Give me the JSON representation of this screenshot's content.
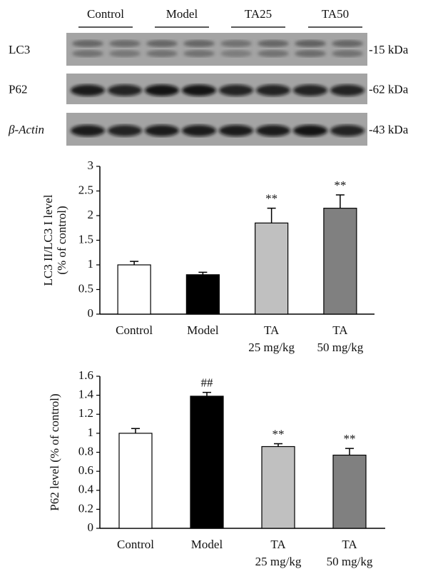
{
  "blot": {
    "groups": [
      "Control",
      "Model",
      "TA25",
      "TA50"
    ],
    "rows": [
      {
        "label": "LC3",
        "size": "-15 kDa"
      },
      {
        "label": "P62",
        "size": "-62 kDa"
      },
      {
        "label": "β-Actin",
        "size": "-43 kDa"
      }
    ]
  },
  "chart_data": [
    {
      "type": "bar",
      "y_label": [
        "LC3 II/LC3 I level",
        "(% of control)"
      ],
      "categories": [
        [
          "Control"
        ],
        [
          "Model"
        ],
        [
          "TA",
          "25 mg/kg"
        ],
        [
          "TA",
          "50 mg/kg"
        ]
      ],
      "values": [
        1.0,
        0.8,
        1.85,
        2.15
      ],
      "errors": [
        0.07,
        0.05,
        0.3,
        0.27
      ],
      "annotations": [
        null,
        null,
        "**",
        "**"
      ],
      "colors": [
        "#ffffff",
        "#000000",
        "#c0c0c0",
        "#808080"
      ],
      "ylim": [
        0,
        3
      ],
      "yticks": [
        0,
        0.5,
        1,
        1.5,
        2,
        2.5,
        3
      ]
    },
    {
      "type": "bar",
      "y_label": [
        "P62 level (% of control)"
      ],
      "categories": [
        [
          "Control"
        ],
        [
          "Model"
        ],
        [
          "TA",
          "25 mg/kg"
        ],
        [
          "TA",
          "50 mg/kg"
        ]
      ],
      "values": [
        1.0,
        1.39,
        0.86,
        0.77
      ],
      "errors": [
        0.05,
        0.04,
        0.03,
        0.07
      ],
      "annotations": [
        null,
        "##",
        "**",
        "**"
      ],
      "colors": [
        "#ffffff",
        "#000000",
        "#c0c0c0",
        "#808080"
      ],
      "ylim": [
        0,
        1.6
      ],
      "yticks": [
        0,
        0.2,
        0.4,
        0.6,
        0.8,
        1,
        1.2,
        1.4,
        1.6
      ]
    }
  ]
}
